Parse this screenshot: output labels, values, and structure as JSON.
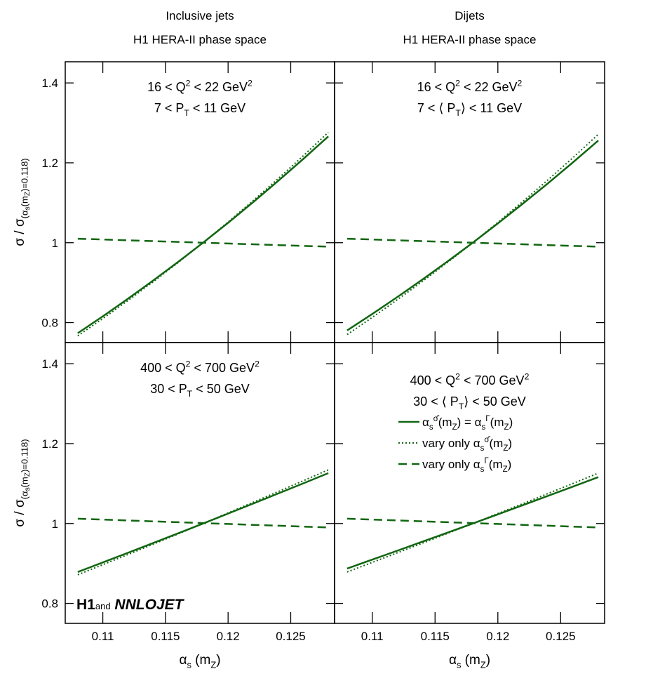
{
  "chart_data": [
    {
      "type": "line",
      "title": "Inclusive jets",
      "subtitle": "H1 HERA-II phase space",
      "ylabel": [
        {
          "text": "σ / σ"
        },
        {
          "text": "(α",
          "script": "sub"
        },
        {
          "text": "s",
          "script": "sub2"
        },
        {
          "text": "(m",
          "script": "sub"
        },
        {
          "text": "Z",
          "script": "sub2"
        },
        {
          "text": ")=0.118)",
          "script": "sub"
        }
      ],
      "annotation": [
        [
          {
            "text": "16 < Q"
          },
          {
            "text": "2",
            "script": "sup"
          },
          {
            "text": " < 22 GeV"
          },
          {
            "text": "2",
            "script": "sup"
          }
        ],
        [
          {
            "text": "7 < P"
          },
          {
            "text": "T",
            "script": "sub"
          },
          {
            "text": " < 11 GeV"
          }
        ]
      ],
      "x": [
        0.108,
        0.11,
        0.112,
        0.114,
        0.116,
        0.118,
        0.12,
        0.122,
        0.124,
        0.126,
        0.128
      ],
      "series": [
        {
          "dash": "solid",
          "color": "#116611",
          "values": [
            0.7735,
            0.8158,
            0.8595,
            0.9048,
            0.9516,
            1,
            1.0499,
            1.1015,
            1.1547,
            1.2095,
            1.2661
          ]
        },
        {
          "dash": "dotted",
          "color": "#116611",
          "values": [
            0.7667,
            0.8101,
            0.8551,
            0.9017,
            0.95,
            1,
            1.0517,
            1.1052,
            1.1604,
            1.2175,
            1.2764
          ]
        },
        {
          "dash": "dashed",
          "color": "#116611",
          "values": [
            1.01,
            1.008,
            1.006,
            1.004,
            1.002,
            1,
            0.998,
            0.996,
            0.994,
            0.992,
            0.99
          ]
        }
      ],
      "xlim": [
        0.107,
        0.1285
      ],
      "ylim": [
        0.75,
        1.453
      ],
      "xticks": [
        0.11,
        0.115,
        0.12,
        0.125
      ],
      "yticks": [
        0.8,
        1,
        1.2,
        1.4
      ]
    },
    {
      "type": "line",
      "title": "Dijets",
      "subtitle": "H1 HERA-II phase space",
      "annotation": [
        [
          {
            "text": "16 < Q"
          },
          {
            "text": "2",
            "script": "sup"
          },
          {
            "text": " < 22 GeV"
          },
          {
            "text": "2",
            "script": "sup"
          }
        ],
        [
          {
            "text": "7 < ⟨ P"
          },
          {
            "text": "T",
            "script": "sub"
          },
          {
            "text": "⟩ < 11 GeV"
          }
        ]
      ],
      "x": [
        0.108,
        0.11,
        0.112,
        0.114,
        0.116,
        0.118,
        0.12,
        0.122,
        0.124,
        0.126,
        0.128
      ],
      "series": [
        {
          "dash": "solid",
          "color": "#116611",
          "values": [
            0.7804,
            0.8216,
            0.8641,
            0.9079,
            0.9533,
            1,
            1.0482,
            1.0979,
            1.149,
            1.2017,
            1.2558
          ]
        },
        {
          "dash": "dotted",
          "color": "#116611",
          "values": [
            0.7701,
            0.813,
            0.8573,
            0.9033,
            0.9508,
            1,
            1.0508,
            1.1034,
            1.1575,
            1.2135,
            1.2712
          ]
        },
        {
          "dash": "dashed",
          "color": "#116611",
          "values": [
            1.01,
            1.008,
            1.006,
            1.004,
            1.002,
            1,
            0.998,
            0.996,
            0.994,
            0.992,
            0.99
          ]
        }
      ],
      "xlim": [
        0.107,
        0.1285
      ],
      "ylim": [
        0.75,
        1.453
      ],
      "xticks": [
        0.11,
        0.115,
        0.12,
        0.125
      ],
      "yticks": [
        0.8,
        1,
        1.2,
        1.4
      ]
    },
    {
      "type": "line",
      "ylabel": [
        {
          "text": "σ / σ"
        },
        {
          "text": "(α",
          "script": "sub"
        },
        {
          "text": "s",
          "script": "sub2"
        },
        {
          "text": "(m",
          "script": "sub"
        },
        {
          "text": "Z",
          "script": "sub2"
        },
        {
          "text": ")=0.118)",
          "script": "sub"
        }
      ],
      "xlabel": [
        {
          "text": "α"
        },
        {
          "text": "s",
          "script": "sub"
        },
        {
          "text": " (m"
        },
        {
          "text": "Z",
          "script": "sub"
        },
        {
          "text": ")"
        }
      ],
      "logo": [
        {
          "text": "H1",
          "style": "bold"
        },
        {
          "text": "and",
          "style": "small"
        },
        {
          "text": " NNLOJET",
          "style": "bolditalic"
        }
      ],
      "annotation": [
        [
          {
            "text": "400 < Q"
          },
          {
            "text": "2",
            "script": "sup"
          },
          {
            "text": " < 700 GeV"
          },
          {
            "text": "2",
            "script": "sup"
          }
        ],
        [
          {
            "text": "30 < P"
          },
          {
            "text": "T",
            "script": "sub"
          },
          {
            "text": " < 50 GeV"
          }
        ]
      ],
      "x": [
        0.108,
        0.11,
        0.112,
        0.114,
        0.116,
        0.118,
        0.12,
        0.122,
        0.124,
        0.126,
        0.128
      ],
      "series": [
        {
          "dash": "solid",
          "color": "#116611",
          "values": [
            0.8787,
            0.9026,
            0.9266,
            0.9509,
            0.9753,
            1,
            1.0248,
            1.0499,
            1.0751,
            1.1005,
            1.1261
          ]
        },
        {
          "dash": "dotted",
          "color": "#116611",
          "values": [
            0.8717,
            0.8969,
            0.9223,
            0.9479,
            0.9738,
            1,
            1.0264,
            1.0531,
            1.0799,
            1.107,
            1.1344
          ]
        },
        {
          "dash": "dashed",
          "color": "#116611",
          "values": [
            1.012,
            1.0098,
            1.0076,
            1.0054,
            1.0032,
            1.001,
            0.9988,
            0.9966,
            0.9944,
            0.9922,
            0.99
          ]
        }
      ],
      "xlim": [
        0.107,
        0.1285
      ],
      "ylim": [
        0.75,
        1.453
      ],
      "xticks": [
        0.11,
        0.115,
        0.12,
        0.125
      ],
      "yticks": [
        0.8,
        1,
        1.2,
        1.4
      ]
    },
    {
      "type": "line",
      "xlabel": [
        {
          "text": "α"
        },
        {
          "text": "s",
          "script": "sub"
        },
        {
          "text": " (m"
        },
        {
          "text": "Z",
          "script": "sub"
        },
        {
          "text": ")"
        }
      ],
      "annotation": [
        [
          {
            "text": "400 < Q"
          },
          {
            "text": "2",
            "script": "sup"
          },
          {
            "text": " < 700 GeV"
          },
          {
            "text": "2",
            "script": "sup"
          }
        ],
        [
          {
            "text": "30 < ⟨ P"
          },
          {
            "text": "T",
            "script": "sub"
          },
          {
            "text": "⟩ < 50 GeV"
          }
        ]
      ],
      "x": [
        0.108,
        0.11,
        0.112,
        0.114,
        0.116,
        0.118,
        0.12,
        0.122,
        0.124,
        0.126,
        0.128
      ],
      "series": [
        {
          "name": [
            {
              "text": "α"
            },
            {
              "text": "s",
              "script": "sub"
            },
            {
              "text": "σ̂",
              "script": "sup"
            },
            {
              "text": "(m"
            },
            {
              "text": "Z",
              "script": "sub"
            },
            {
              "text": ") = α"
            },
            {
              "text": "s",
              "script": "sub"
            },
            {
              "text": "Γ",
              "script": "sup"
            },
            {
              "text": "(m"
            },
            {
              "text": "Z",
              "script": "sub"
            },
            {
              "text": ")"
            }
          ],
          "dash": "solid",
          "color": "#116611",
          "values": [
            0.8873,
            0.9096,
            0.9319,
            0.9545,
            0.9772,
            1,
            1.023,
            1.046,
            1.0693,
            1.0926,
            1.1161
          ]
        },
        {
          "name": [
            {
              "text": "vary only α"
            },
            {
              "text": "s",
              "script": "sub"
            },
            {
              "text": "σ̂",
              "script": "sup"
            },
            {
              "text": "(m"
            },
            {
              "text": "Z",
              "script": "sub"
            },
            {
              "text": ")"
            }
          ],
          "dash": "dotted",
          "color": "#116611",
          "values": [
            0.8787,
            0.9026,
            0.9266,
            0.9509,
            0.9753,
            1,
            1.0248,
            1.0499,
            1.0751,
            1.1005,
            1.1261
          ]
        },
        {
          "name": [
            {
              "text": "vary only α"
            },
            {
              "text": "s",
              "script": "sub"
            },
            {
              "text": "Γ",
              "script": "sup"
            },
            {
              "text": "(m"
            },
            {
              "text": "Z",
              "script": "sub"
            },
            {
              "text": ")"
            }
          ],
          "dash": "dashed",
          "color": "#116611",
          "values": [
            1.012,
            1.0098,
            1.0076,
            1.0054,
            1.0032,
            1.001,
            0.9988,
            0.9966,
            0.9944,
            0.9922,
            0.99
          ]
        }
      ],
      "xlim": [
        0.107,
        0.1285
      ],
      "ylim": [
        0.75,
        1.453
      ],
      "xticks": [
        0.11,
        0.115,
        0.12,
        0.125
      ],
      "yticks": [
        0.8,
        1,
        1.2,
        1.4
      ]
    }
  ]
}
